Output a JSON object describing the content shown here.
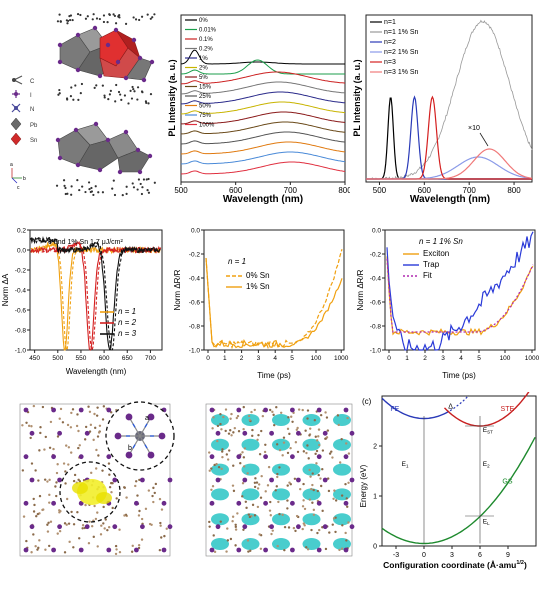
{
  "colors": {
    "pb_octahedron": "#7a7a7a",
    "sn_octahedron": "#e03030",
    "iodine": "#6a2a8a",
    "carbon": "#333333",
    "nitrogen": "#4a4a9a",
    "spin_density": "#f2ee2a",
    "charge_density": "#35c8c8"
  },
  "structure_legend": {
    "items": [
      {
        "label": "C",
        "icon": "carbon-atom"
      },
      {
        "label": "I",
        "icon": "iodine-atom"
      },
      {
        "label": "N",
        "icon": "nitrogen-atom"
      },
      {
        "label": "Pb",
        "icon": "pb-octahedron"
      },
      {
        "label": "Sn",
        "icon": "sn-octahedron"
      }
    ],
    "axes": [
      "a",
      "b",
      "c"
    ]
  },
  "inset_axes": {
    "a": "a",
    "b": "b"
  },
  "panel_c_tag": "(c)",
  "chart_data": [
    {
      "type": "line",
      "ylabel": "PL Intensity (a. u.)",
      "xlabel": "Wavelength (nm)",
      "xlim": [
        500,
        800
      ],
      "xticks": [
        500,
        600,
        700,
        800
      ],
      "y_tick_labels": false,
      "legend_placement": "top-left",
      "series": [
        {
          "name": "0%",
          "color": "#000000"
        },
        {
          "name": "0.01%",
          "color": "#1b9e4b"
        },
        {
          "name": "0.1%",
          "color": "#cc2222"
        },
        {
          "name": "0.2%",
          "color": "#777777"
        },
        {
          "name": "1%",
          "color": "#2a2a8a"
        },
        {
          "name": "2%",
          "color": "#c8b400"
        },
        {
          "name": "5%",
          "color": "#8a1a1a"
        },
        {
          "name": "15%",
          "color": "#6a4a1a"
        },
        {
          "name": "25%",
          "color": "#555555"
        },
        {
          "name": "50%",
          "color": "#e07a10"
        },
        {
          "name": "75%",
          "color": "#4a8ad8"
        },
        {
          "name": "100%",
          "color": "#e03040"
        }
      ]
    },
    {
      "type": "line",
      "ylabel": "PL Intensity (a. u.)",
      "xlabel": "Wavelength (nm)",
      "xlim": [
        470,
        840
      ],
      "xticks": [
        500,
        600,
        700,
        800
      ],
      "y_tick_labels": false,
      "legend_placement": "top-left",
      "annotation": "×10",
      "series": [
        {
          "name": "n=1",
          "color": "#000000",
          "peak": 525
        },
        {
          "name": "n=1 1% Sn",
          "color": "#999999",
          "peak": 730
        },
        {
          "name": "n=2",
          "color": "#2a3ab8",
          "peak": 578
        },
        {
          "name": "n=2 1% Sn",
          "color": "#8a9ae8",
          "peak": 720
        },
        {
          "name": "n=3",
          "color": "#d42020",
          "peak": 618
        },
        {
          "name": "n=3 1% Sn",
          "color": "#f07a7a",
          "peak": 745
        }
      ]
    },
    {
      "type": "line",
      "ylabel": "Norm ΔA",
      "xlabel": "Wavelength (nm)",
      "xlim": [
        440,
        725
      ],
      "ylim": [
        -1.0,
        0.2
      ],
      "xticks": [
        450,
        500,
        550,
        600,
        650,
        700
      ],
      "yticks": [
        "0.2",
        "0.0",
        "-0.2",
        "-0.4",
        "-0.6",
        "-0.8",
        "-1.0"
      ],
      "annotation": "0 and 1% Sn 1.7 μJ/cm²",
      "legend_placement": "bottom-right",
      "series": [
        {
          "name": "n = 1",
          "color": "#f0a010",
          "dip": 515
        },
        {
          "name": "n = 2",
          "color": "#d42020",
          "dip": 570
        },
        {
          "name": "n = 3",
          "color": "#111111",
          "dip": 612
        }
      ]
    },
    {
      "type": "line",
      "ylabel": "Norm ΔR/R",
      "xlabel": "Time (ps)",
      "ylim": [
        -1.0,
        0.0
      ],
      "yticks": [
        "0.0",
        "-0.2",
        "-0.4",
        "-0.6",
        "-0.8",
        "-1.0"
      ],
      "xticks": [
        "0",
        "1",
        "2",
        "3",
        "4",
        "5",
        "100",
        "1000"
      ],
      "title": "n = 1",
      "legend_placement": "top-right",
      "series": [
        {
          "name": "0% Sn",
          "color": "#f0a010",
          "style": "dashed"
        },
        {
          "name": "1% Sn",
          "color": "#f0a010",
          "style": "solid"
        }
      ]
    },
    {
      "type": "line",
      "ylabel": "Norm ΔR/R",
      "xlabel": "Time (ps)",
      "ylim": [
        -1.0,
        0.0
      ],
      "yticks": [
        "0.0",
        "-0.2",
        "-0.4",
        "-0.6",
        "-0.8",
        "-1.0"
      ],
      "xticks": [
        "0",
        "1",
        "2",
        "3",
        "4",
        "5",
        "100",
        "1000"
      ],
      "title": "n = 1 1% Sn",
      "legend_placement": "top-left",
      "series": [
        {
          "name": "Exciton",
          "color": "#f0a010",
          "style": "solid"
        },
        {
          "name": "Trap",
          "color": "#2a3ad8",
          "style": "solid"
        },
        {
          "name": "Fit",
          "color": "#b02ab0",
          "style": "dotted"
        }
      ]
    },
    {
      "type": "line",
      "ylabel": "Energy (eV)",
      "xlabel": "Configuration coordinate (Å·amu",
      "xlabel_sup": "1/2",
      "xlabel_end": ")",
      "xlim": [
        -4.5,
        12
      ],
      "ylim": [
        0,
        3
      ],
      "xticks": [
        -3,
        0,
        3,
        6,
        9
      ],
      "yticks": [
        0,
        1,
        2
      ],
      "labels": {
        "FE": "FE",
        "STE": "STE",
        "GS": "GS",
        "delta": "Δ",
        "E1": "E",
        "E2": "E",
        "EST": "E",
        "EL": "E",
        "E1_sub": "1",
        "E2_sub": "2",
        "EST_sub": "ST",
        "EL_sub": "L"
      },
      "series": [
        {
          "name": "FE",
          "color": "#2a3ab8",
          "min_x": 0,
          "min_y": 2.55
        },
        {
          "name": "STE",
          "color": "#c82020",
          "min_x": 6,
          "min_y": 2.4
        },
        {
          "name": "GS",
          "color": "#1e8a2e",
          "min_x": 0,
          "min_y": 0.05
        }
      ],
      "markers": [
        0,
        6
      ]
    }
  ]
}
